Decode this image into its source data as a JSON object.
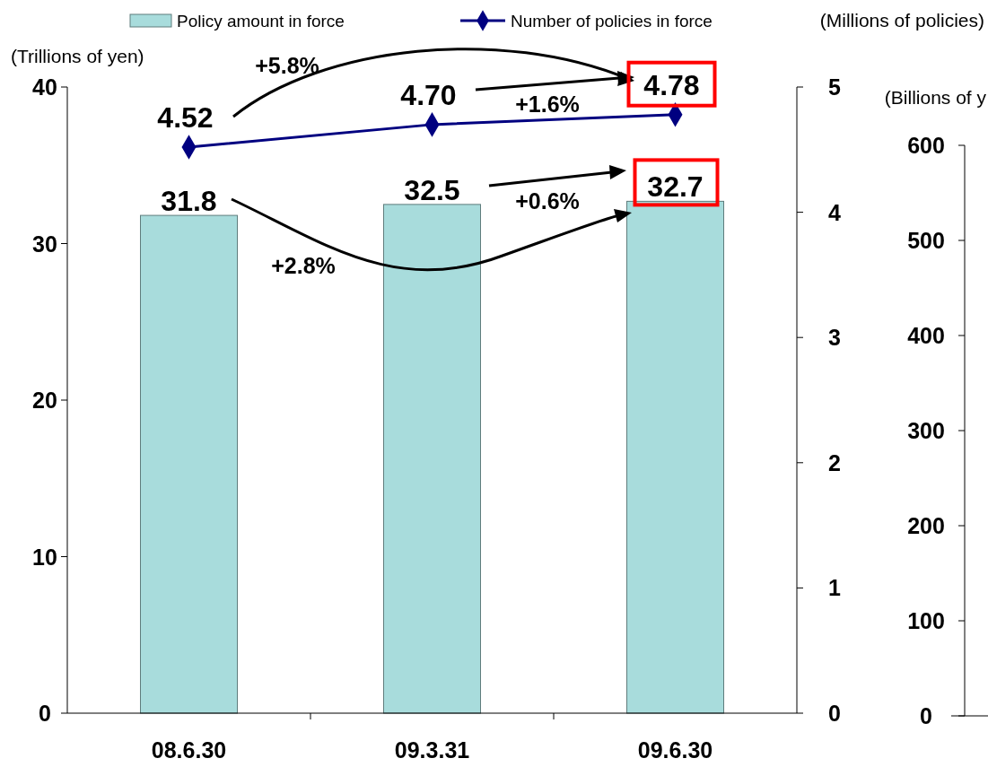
{
  "chart_data": {
    "type": "bar",
    "categories": [
      "08.6.30",
      "09.3.31",
      "09.6.30"
    ],
    "series": [
      {
        "name": "Policy amount in force",
        "type": "bar",
        "color": "#a8dcdc",
        "values": [
          31.8,
          32.5,
          32.7
        ]
      },
      {
        "name": "Number of policies in force",
        "type": "line",
        "axis": "y2",
        "color": "#000080",
        "values": [
          4.52,
          4.7,
          4.78
        ],
        "value_labels": [
          "4.52",
          "4.70",
          "4.78"
        ]
      }
    ],
    "ylabel": "(Trillions of yen)",
    "y2label": "(Millions of policies)",
    "y3label": "(Billions of y",
    "ylim": [
      0,
      40
    ],
    "yticks": [
      0,
      10,
      20,
      30,
      40
    ],
    "y2lim": [
      0,
      5
    ],
    "y2ticks": [
      0,
      1,
      2,
      3,
      4,
      5
    ],
    "y3lim": [
      0,
      600
    ],
    "y3ticks": [
      0,
      100,
      200,
      300,
      400,
      500,
      600
    ],
    "data_labels": true,
    "marker": "diamond",
    "legend": "top",
    "annotations": [
      "+5.8%",
      "+1.6%",
      "+0.6%",
      "+2.8%"
    ]
  }
}
